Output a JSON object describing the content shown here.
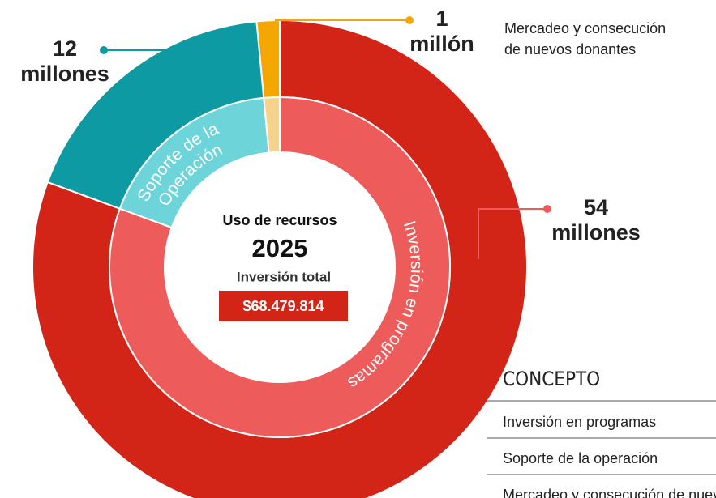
{
  "chart_data": {
    "type": "pie",
    "title": "Uso de recursos",
    "subtitle": "2025",
    "total_label": "Inversión total",
    "total_value": "$68.479.814",
    "categories": [
      "Inversión en programas",
      "Soporte de la operación",
      "Mercadeo y consecución de nuevos donantes"
    ],
    "values": [
      54,
      12,
      1
    ],
    "value_labels": [
      "54 millones",
      "12 millones",
      "1 millón"
    ],
    "colors": [
      "#d32517",
      "#0e9aa2",
      "#f4a700"
    ],
    "inner_colors": [
      "#ee5b5b",
      "#6dd5d9",
      "#f6d38d"
    ],
    "ring_labels": [
      [
        "Inversión en programas"
      ],
      [
        "Soporte de la",
        "Operación"
      ]
    ],
    "callout": [
      "Mercadeo y consecución",
      "de nuevos donantes"
    ],
    "legend_title": "CONCEPTO"
  }
}
